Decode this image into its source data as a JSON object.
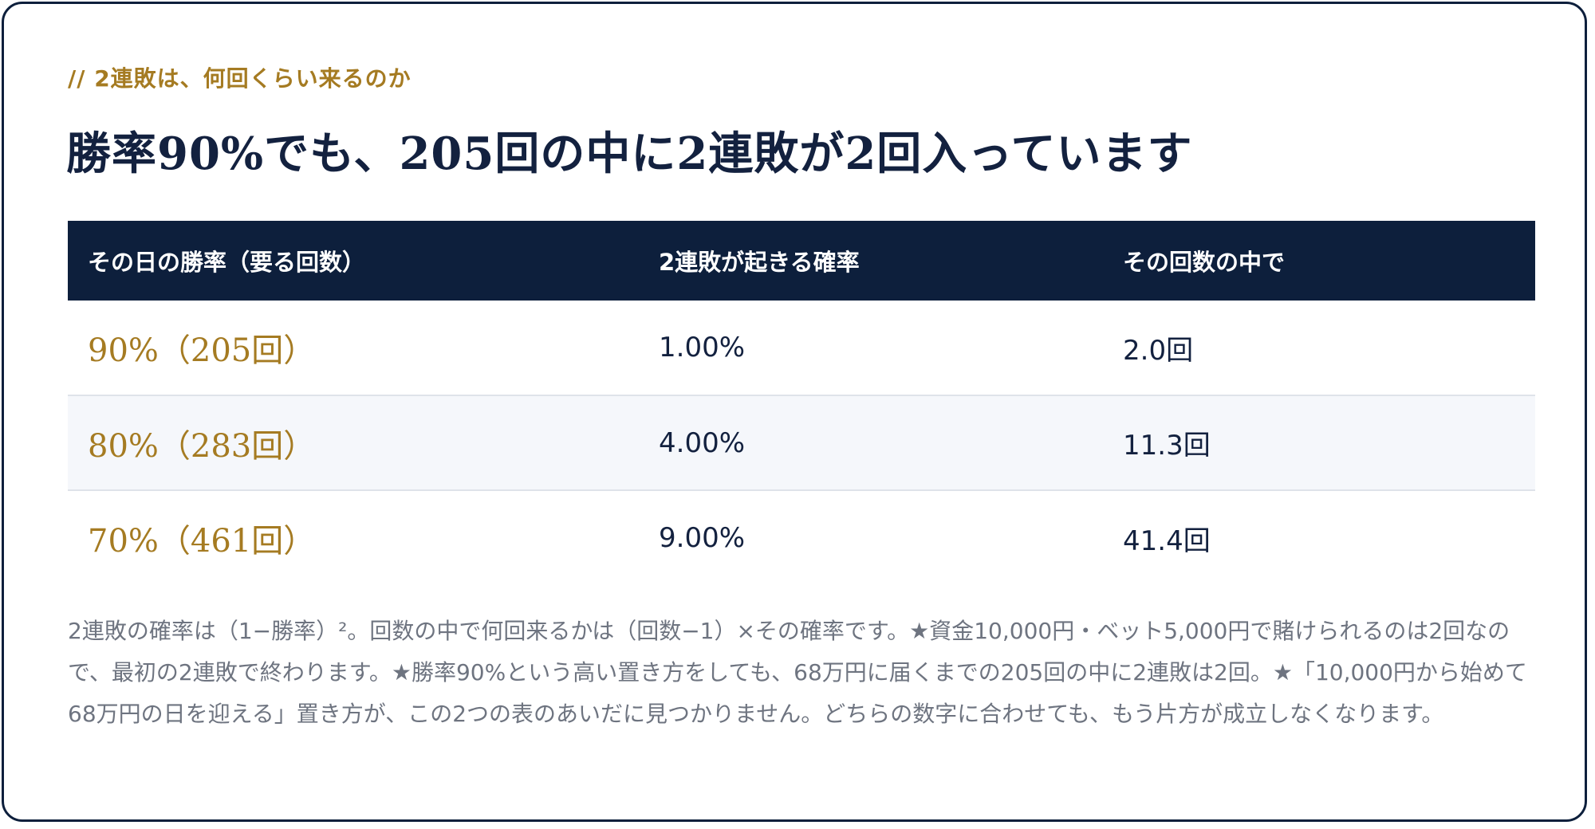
{
  "eyebrow": "// 2連敗は、何回くらい来るのか",
  "headline": "勝率90%でも、205回の中に2連敗が2回入っています",
  "table": {
    "headers": [
      "その日の勝率（要る回数）",
      "2連敗が起きる確率",
      "その回数の中で"
    ],
    "rows": [
      {
        "rate": "90%（205回）",
        "prob": "1.00%",
        "count": "2.0回"
      },
      {
        "rate": "80%（283回）",
        "prob": "4.00%",
        "count": "11.3回"
      },
      {
        "rate": "70%（461回）",
        "prob": "9.00%",
        "count": "41.4回"
      }
    ]
  },
  "note": "2連敗の確率は（1−勝率）²。回数の中で何回来るかは（回数−1）×その確率です。★資金10,000円・ベット5,000円で賭けられるのは2回なので、最初の2連敗で終わります。★勝率90%という高い置き方をしても、68万円に届くまでの205回の中に2連敗は2回。★「10,000円から始めて68万円の日を迎える」置き方が、この2つの表のあいだに見つかりません。どちらの数字に合わせても、もう片方が成立しなくなります。",
  "colors": {
    "accent": "#a57b22",
    "navy": "#0d1f3c",
    "text_muted": "#6e7480",
    "row_alt": "#f5f7fb"
  }
}
